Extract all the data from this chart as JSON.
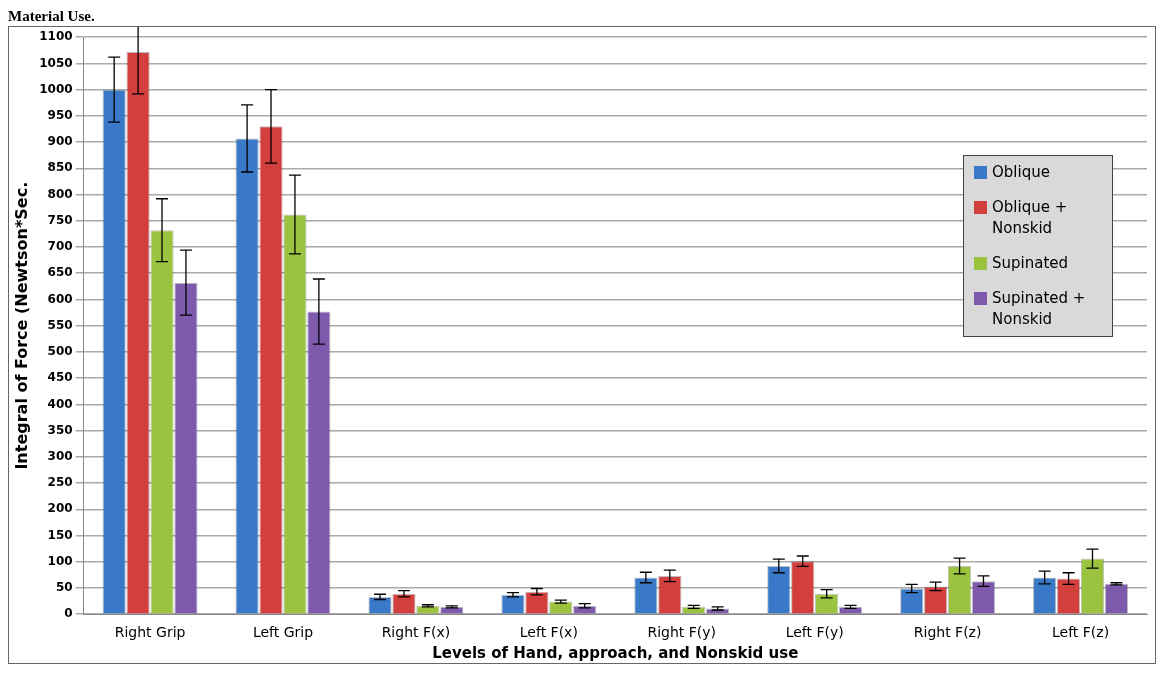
{
  "chart_data": {
    "type": "bar",
    "title": "Material Use.",
    "xlabel": "Levels of Hand, approach, and Nonskid use",
    "ylabel": "Integral of Force (Newtson*Sec.",
    "categories": [
      "Right Grip",
      "Left Grip",
      "Right F(x)",
      "Left F(x)",
      "Right F(y)",
      "Left F(y)",
      "Right F(z)",
      "Left F(z)"
    ],
    "series": [
      {
        "name": "Oblique",
        "color": "#3a78c8",
        "values": [
          1000,
          907,
          33,
          37,
          70,
          92,
          49,
          70
        ],
        "errors": [
          62,
          64,
          5,
          4,
          10,
          13,
          8,
          12
        ]
      },
      {
        "name": "Oblique + Nonskid",
        "color": "#d23f3c",
        "values": [
          1072,
          930,
          39,
          43,
          73,
          101,
          53,
          68
        ],
        "errors": [
          80,
          70,
          6,
          6,
          11,
          10,
          8,
          11
        ]
      },
      {
        "name": "Supinated",
        "color": "#9ac440",
        "values": [
          732,
          762,
          16,
          24,
          14,
          39,
          92,
          106
        ],
        "errors": [
          60,
          75,
          2,
          3,
          3,
          8,
          15,
          18
        ]
      },
      {
        "name": "Supinated + Nonskid",
        "color": "#7e5aad",
        "values": [
          632,
          577,
          14,
          16,
          11,
          14,
          63,
          58
        ],
        "errors": [
          62,
          62,
          2,
          4,
          3,
          3,
          10,
          2
        ]
      }
    ],
    "ylim": [
      0,
      1100
    ],
    "yticks": [
      0,
      50,
      100,
      150,
      200,
      250,
      300,
      350,
      400,
      450,
      500,
      550,
      600,
      650,
      700,
      750,
      800,
      850,
      900,
      950,
      1000,
      1050,
      1100
    ],
    "grid": "y",
    "legend": "right"
  }
}
